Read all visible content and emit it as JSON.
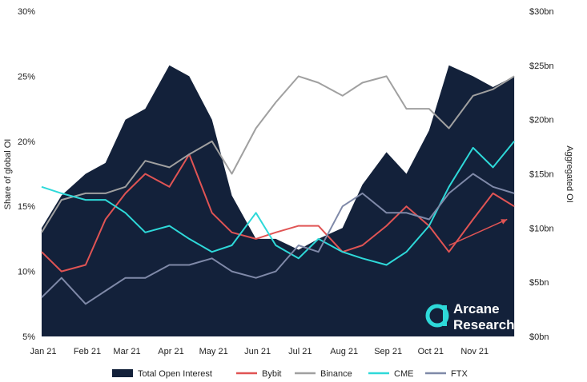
{
  "chart_data": {
    "type": "area",
    "x": [
      "2021-01-01",
      "2021-01-15",
      "2021-02-01",
      "2021-02-15",
      "2021-03-01",
      "2021-03-15",
      "2021-04-01",
      "2021-04-15",
      "2021-05-01",
      "2021-05-15",
      "2021-06-01",
      "2021-06-15",
      "2021-07-01",
      "2021-07-15",
      "2021-08-01",
      "2021-08-15",
      "2021-09-01",
      "2021-09-15",
      "2021-10-01",
      "2021-10-15",
      "2021-11-01",
      "2021-11-15",
      "2021-11-30"
    ],
    "x_tick_labels": [
      "Jan 21",
      "Feb 21",
      "Mar 21",
      "Apr 21",
      "May 21",
      "Jun 21",
      "Jul 21",
      "Aug 21",
      "Sep 21",
      "Oct 21",
      "Nov 21"
    ],
    "y_left": {
      "label": "Share of global OI",
      "ticks": [
        "5%",
        "10%",
        "15%",
        "20%",
        "25%",
        "30%"
      ],
      "lim": [
        5,
        30
      ]
    },
    "y_right": {
      "label": "Aggregated OI",
      "ticks": [
        "$0bn",
        "$5bn",
        "$10bn",
        "$15bn",
        "$20bn",
        "$25bn",
        "$30bn"
      ],
      "lim": [
        0,
        30
      ]
    },
    "grid": false,
    "legend_position": "bottom",
    "series": [
      {
        "name": "Total Open Interest",
        "axis": "right",
        "style": "area",
        "color": "#13213a",
        "values": [
          10,
          13,
          15,
          16,
          20,
          21,
          25,
          24,
          20,
          13,
          9,
          9,
          8,
          9,
          10,
          14,
          17,
          15,
          19,
          25,
          24,
          23,
          24
        ]
      },
      {
        "name": "Bybit",
        "axis": "left",
        "style": "line",
        "color": "#e05454",
        "values": [
          11.5,
          10,
          10.5,
          14,
          16,
          17.5,
          16.5,
          19,
          14.5,
          13,
          12.5,
          13,
          13.5,
          13.5,
          11.5,
          12,
          13.5,
          15,
          13.5,
          11.5,
          14,
          16,
          15
        ]
      },
      {
        "name": "Binance",
        "axis": "left",
        "style": "line",
        "color": "#a0a0a0",
        "values": [
          13,
          15.5,
          16,
          16,
          16.5,
          18.5,
          18,
          19,
          20,
          17.5,
          21,
          23,
          25,
          24.5,
          23.5,
          24.5,
          25,
          22.5,
          22.5,
          21,
          23.5,
          24,
          25
        ]
      },
      {
        "name": "CME",
        "axis": "left",
        "style": "line",
        "color": "#2ed9d9",
        "values": [
          16.5,
          16,
          15.5,
          15.5,
          14.5,
          13,
          13.5,
          12.5,
          11.5,
          12,
          14.5,
          12,
          11,
          12.5,
          11.5,
          11,
          10.5,
          11.5,
          13.5,
          16.5,
          19.5,
          18,
          20
        ]
      },
      {
        "name": "FTX",
        "axis": "left",
        "style": "line",
        "color": "#7f89a8",
        "values": [
          8,
          9.5,
          7.5,
          8.5,
          9.5,
          9.5,
          10.5,
          10.5,
          11,
          10,
          9.5,
          10,
          12,
          11.5,
          15,
          16,
          14.5,
          14.5,
          14,
          16,
          17.5,
          16.5,
          16
        ]
      }
    ],
    "annotation": {
      "type": "arrow",
      "color": "#e05454",
      "from": [
        "2021-10-15",
        12
      ],
      "to": [
        "2021-11-25",
        14
      ]
    }
  },
  "brand": {
    "line1": "Arcane",
    "line2": "Research"
  },
  "legend_items": [
    {
      "name": "Total Open Interest",
      "marker": "box"
    },
    {
      "name": "Bybit",
      "marker": "line"
    },
    {
      "name": "Binance",
      "marker": "line"
    },
    {
      "name": "CME",
      "marker": "line"
    },
    {
      "name": "FTX",
      "marker": "line"
    }
  ]
}
